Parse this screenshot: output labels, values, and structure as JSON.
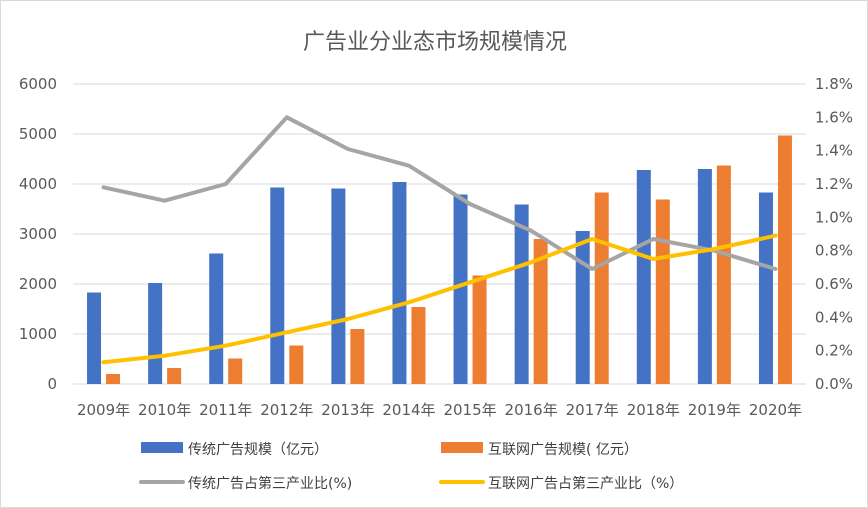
{
  "chart_data": {
    "type": "bar",
    "title": "广告业分业态市场规模情况",
    "categories": [
      "2009年",
      "2010年",
      "2011年",
      "2012年",
      "2013年",
      "2014年",
      "2015年",
      "2016年",
      "2017年",
      "2018年",
      "2019年",
      "2020年"
    ],
    "y_left": {
      "ylim": [
        0,
        6000
      ],
      "ticks": [
        "0",
        "1000",
        "2000",
        "3000",
        "4000",
        "5000",
        "6000"
      ]
    },
    "y_right": {
      "ylim": [
        0,
        1.8
      ],
      "ticks": [
        "0.0%",
        "0.2%",
        "0.4%",
        "0.6%",
        "0.8%",
        "1.0%",
        "1.2%",
        "1.4%",
        "1.6%",
        "1.8%"
      ]
    },
    "grid": true,
    "legend_position": "bottom",
    "series": [
      {
        "name": "传统广告规模（亿元）",
        "type": "bar",
        "axis": "left",
        "color": "#4472C4",
        "values": [
          1830,
          2020,
          2610,
          3930,
          3910,
          4040,
          3790,
          3590,
          3060,
          4280,
          4300,
          3830
        ]
      },
      {
        "name": "互联网广告规模( 亿元）",
        "type": "bar",
        "axis": "left",
        "color": "#ED7D31",
        "values": [
          200,
          320,
          510,
          770,
          1100,
          1540,
          2170,
          2900,
          3830,
          3690,
          4370,
          4970
        ]
      },
      {
        "name": "传统广告占第三产业比(%)",
        "type": "line",
        "axis": "right",
        "color": "#A5A5A5",
        "values": [
          1.18,
          1.1,
          1.2,
          1.6,
          1.41,
          1.31,
          1.08,
          0.92,
          0.69,
          0.87,
          0.8,
          0.69
        ]
      },
      {
        "name": "互联网广告占第三产业比（%）",
        "type": "line",
        "axis": "right",
        "color": "#FFC000",
        "values": [
          0.13,
          0.17,
          0.23,
          0.31,
          0.39,
          0.49,
          0.61,
          0.73,
          0.87,
          0.75,
          0.81,
          0.89
        ]
      }
    ]
  }
}
